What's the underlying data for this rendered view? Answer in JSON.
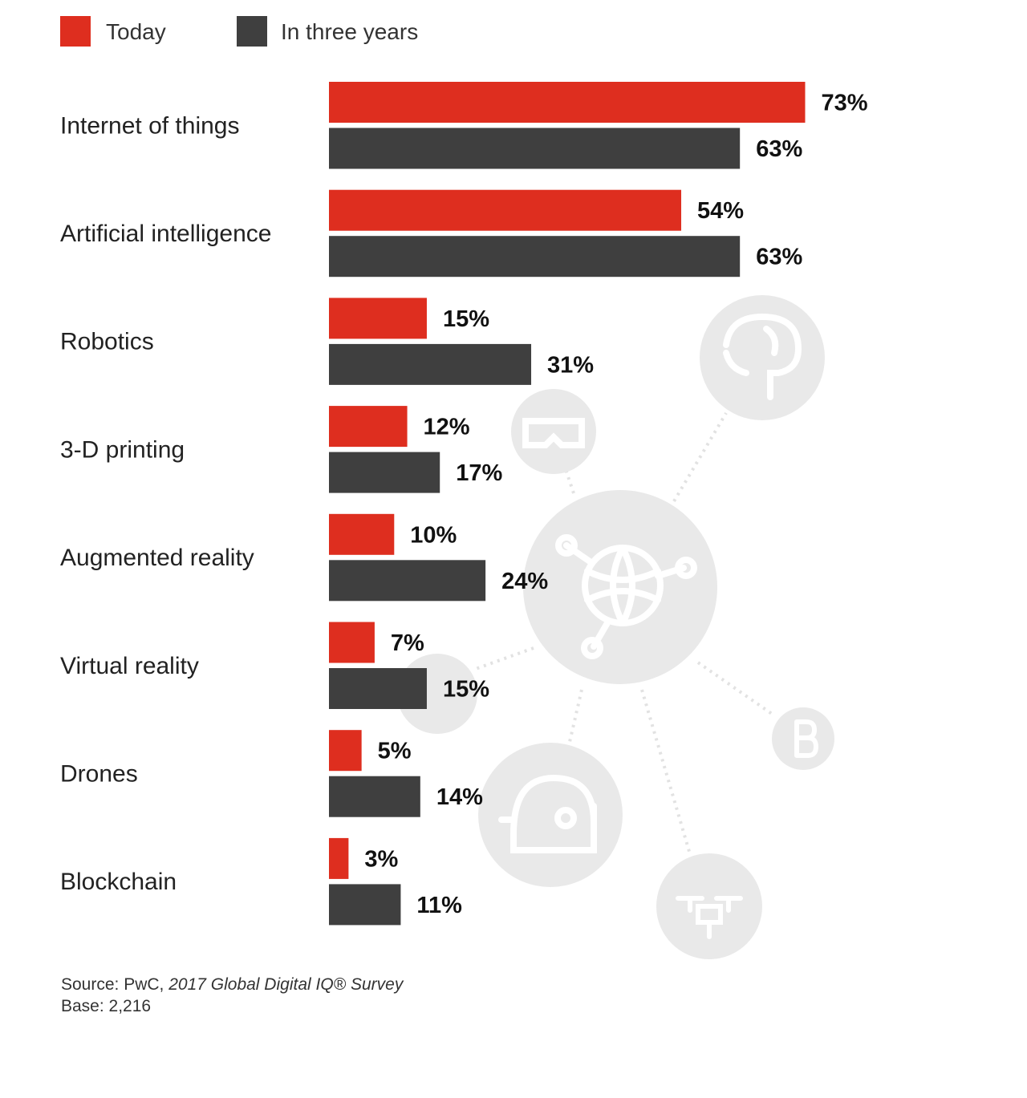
{
  "colors": {
    "today": "#de2e1f",
    "three_years": "#3f3f3f"
  },
  "chart_data": {
    "type": "bar",
    "orientation": "horizontal",
    "categories": [
      "Internet of things",
      "Artificial intelligence",
      "Robotics",
      "3-D printing",
      "Augmented reality",
      "Virtual reality",
      "Drones",
      "Blockchain"
    ],
    "series": [
      {
        "name": "Today",
        "color": "#de2e1f",
        "values": [
          73,
          54,
          15,
          12,
          10,
          7,
          5,
          3
        ],
        "labels": [
          "73%",
          "54%",
          "15%",
          "12%",
          "10%",
          "7%",
          "5%",
          "3%"
        ]
      },
      {
        "name": "In three years",
        "color": "#3f3f3f",
        "values": [
          63,
          63,
          31,
          17,
          24,
          15,
          14,
          11
        ],
        "labels": [
          "63%",
          "63%",
          "31%",
          "17%",
          "24%",
          "15%",
          "14%",
          "11%"
        ]
      }
    ],
    "legend_position": "top-left",
    "grid": false,
    "xlim": [
      0,
      100
    ]
  },
  "source": {
    "prefix": "Source: PwC, ",
    "title": "2017 Global Digital IQ® Survey",
    "base": "Base: 2,216"
  },
  "background_icons": [
    "brain-icon",
    "vr-headset-icon",
    "globe-network-icon",
    "bitcoin-icon",
    "robot-head-icon",
    "drone-icon"
  ]
}
